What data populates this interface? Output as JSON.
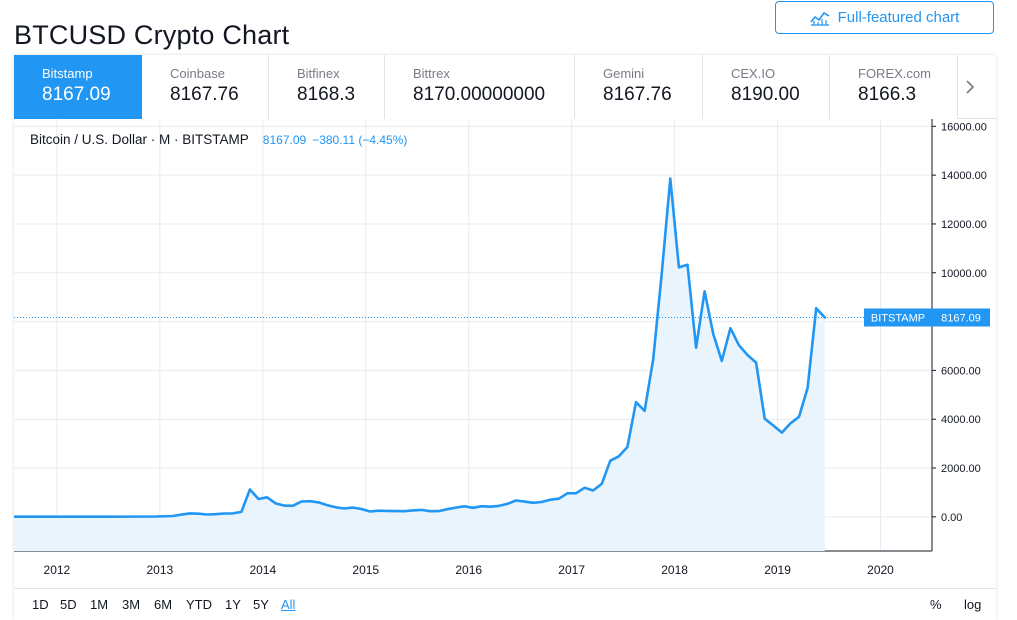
{
  "header": {
    "title": "BTCUSD Crypto Chart",
    "full_chart_label": "Full-featured chart"
  },
  "exchanges": [
    {
      "name": "Bitstamp",
      "price": "8167.09",
      "active": true
    },
    {
      "name": "Coinbase",
      "price": "8167.76",
      "active": false
    },
    {
      "name": "Bitfinex",
      "price": "8168.3",
      "active": false
    },
    {
      "name": "Bittrex",
      "price": "8170.00000000",
      "active": false
    },
    {
      "name": "Gemini",
      "price": "8167.76",
      "active": false
    },
    {
      "name": "CEX.IO",
      "price": "8190.00",
      "active": false
    },
    {
      "name": "FOREX.com",
      "price": "8166.3",
      "active": false
    }
  ],
  "legend": {
    "symbol": "Bitcoin / U.S. Dollar · M · BITSTAMP",
    "price": "8167.09",
    "change": "−380.11 (−4.45%)"
  },
  "ranges": {
    "items": [
      "1D",
      "5D",
      "1M",
      "3M",
      "6M",
      "YTD",
      "1Y",
      "5Y",
      "All"
    ],
    "active": "All",
    "percent_label": "%",
    "log_label": "log"
  },
  "colors": {
    "accent": "#2196f3",
    "line": "#2196f3",
    "area_fill": "#eaf4fd",
    "grid": "#e8ebf0"
  },
  "chart_data": {
    "type": "area",
    "title": "Bitcoin / U.S. Dollar · M · BITSTAMP",
    "xlabel": "",
    "ylabel": "",
    "x_ticks": [
      "2012",
      "2013",
      "2014",
      "2015",
      "2016",
      "2017",
      "2018",
      "2019",
      "2020"
    ],
    "y_ticks": [
      "0.00",
      "2000.00",
      "4000.00",
      "6000.00",
      "8000.00",
      "10000.00",
      "12000.00",
      "14000.00",
      "16000.00"
    ],
    "ylim": [
      -1400,
      16300
    ],
    "xlim": [
      "2011-08",
      "2020-07"
    ],
    "grid": true,
    "last_price_label": {
      "text": "BITSTAMP",
      "value": "8167.09"
    },
    "series": [
      {
        "name": "BITSTAMP",
        "x": [
          "2011-09",
          "2012-01",
          "2012-07",
          "2012-12",
          "2013-02",
          "2013-03",
          "2013-04",
          "2013-05",
          "2013-06",
          "2013-07",
          "2013-08",
          "2013-09",
          "2013-10",
          "2013-11",
          "2013-12",
          "2014-01",
          "2014-02",
          "2014-03",
          "2014-04",
          "2014-05",
          "2014-06",
          "2014-07",
          "2014-08",
          "2014-09",
          "2014-10",
          "2014-11",
          "2014-12",
          "2015-01",
          "2015-02",
          "2015-03",
          "2015-04",
          "2015-05",
          "2015-06",
          "2015-07",
          "2015-08",
          "2015-09",
          "2015-10",
          "2015-11",
          "2015-12",
          "2016-01",
          "2016-02",
          "2016-03",
          "2016-04",
          "2016-05",
          "2016-06",
          "2016-07",
          "2016-08",
          "2016-09",
          "2016-10",
          "2016-11",
          "2016-12",
          "2017-01",
          "2017-02",
          "2017-03",
          "2017-04",
          "2017-05",
          "2017-06",
          "2017-07",
          "2017-08",
          "2017-09",
          "2017-10",
          "2017-11",
          "2017-12",
          "2018-01",
          "2018-02",
          "2018-03",
          "2018-04",
          "2018-05",
          "2018-06",
          "2018-07",
          "2018-08",
          "2018-09",
          "2018-10",
          "2018-11",
          "2018-12",
          "2019-01",
          "2019-02",
          "2019-03",
          "2019-04",
          "2019-05",
          "2019-06"
        ],
        "values": [
          5,
          5,
          7,
          13,
          33,
          93,
          139,
          129,
          97,
          106,
          135,
          141,
          204,
          1120,
          730,
          800,
          550,
          460,
          450,
          630,
          640,
          590,
          480,
          390,
          340,
          380,
          320,
          220,
          250,
          245,
          235,
          230,
          263,
          285,
          230,
          236,
          311,
          377,
          430,
          370,
          437,
          416,
          448,
          530,
          670,
          624,
          575,
          609,
          700,
          742,
          964,
          970,
          1190,
          1080,
          1350,
          2300,
          2480,
          2860,
          4700,
          4340,
          6460,
          9950,
          13860,
          10220,
          10330,
          6930,
          9240,
          7500,
          6390,
          7730,
          7030,
          6630,
          6320,
          4020,
          3740,
          3450,
          3830,
          4100,
          5280,
          8550,
          8167.09
        ]
      }
    ]
  }
}
